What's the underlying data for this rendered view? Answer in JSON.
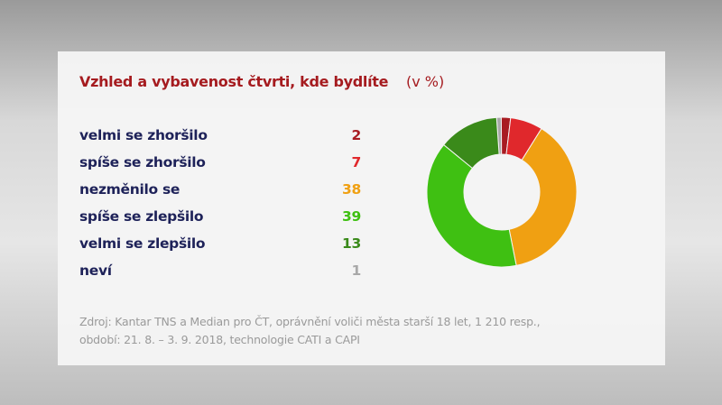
{
  "chart_data": {
    "type": "pie",
    "donut": true,
    "title": "Vzhled a vybavenost čtvrti, kde bydlíte",
    "unit": "(v %)",
    "categories": [
      "velmi se zhoršilo",
      "spíše se zhoršilo",
      "nezměnilo se",
      "spíše se zlepšilo",
      "velmi se zlepšilo",
      "neví"
    ],
    "values": [
      2,
      7,
      38,
      39,
      13,
      1
    ],
    "colors": [
      "#a81c22",
      "#e0282c",
      "#f0a012",
      "#3fc012",
      "#3a8a1a",
      "#a8a8a8"
    ],
    "label_color": "#1e2259",
    "legend": "left",
    "source": [
      "Zdroj: Kantar TNS a Median pro ČT, oprávnění voliči města starší 18 let, 1 210 resp.,",
      "období: 21. 8. – 3. 9. 2018, technologie CATI a CAPI"
    ]
  }
}
